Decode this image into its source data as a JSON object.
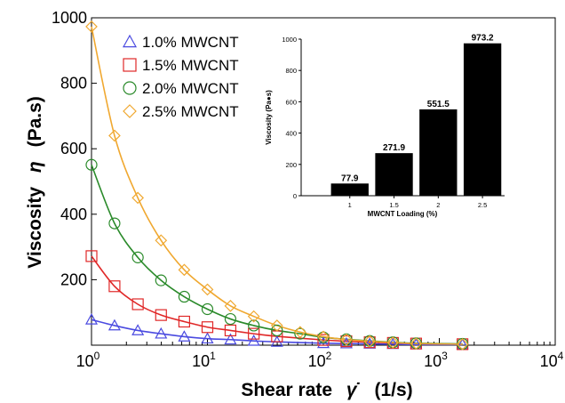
{
  "chart_data": [
    {
      "type": "scatter",
      "xlabel": "Shear rate",
      "xlabel_symbol": "γ̇",
      "xlabel_unit": "(1/s)",
      "ylabel": "Viscosity",
      "ylabel_symbol": "η",
      "ylabel_unit": "(Pa.s)",
      "xscale": "log",
      "xlim": [
        1,
        10000
      ],
      "ylim": [
        0,
        1000
      ],
      "xticks": [
        {
          "base": "10",
          "exp": "0"
        },
        {
          "base": "10",
          "exp": "1"
        },
        {
          "base": "10",
          "exp": "2"
        },
        {
          "base": "10",
          "exp": "3"
        },
        {
          "base": "10",
          "exp": "4"
        }
      ],
      "yticks": [
        "200",
        "400",
        "600",
        "800",
        "1000"
      ],
      "ytick_values": [
        200,
        400,
        600,
        800,
        1000
      ],
      "legend_position": "top-left",
      "series": [
        {
          "name": "1.0% MWCNT",
          "marker": "triangle",
          "color": "#4a4ae0",
          "x": [
            1,
            1.58,
            2.51,
            3.98,
            6.31,
            10,
            15.8,
            25.1,
            39.8,
            100,
            158,
            251,
            398,
            631,
            1585
          ],
          "y": [
            78,
            60,
            45,
            35,
            26,
            20,
            17,
            13,
            10,
            6,
            5,
            4,
            3,
            2,
            2
          ]
        },
        {
          "name": "1.5% MWCNT",
          "marker": "square",
          "color": "#e02828",
          "x": [
            1,
            1.58,
            2.51,
            3.98,
            6.31,
            10,
            15.8,
            25.1,
            39.8,
            100,
            158,
            251,
            398,
            631,
            1585
          ],
          "y": [
            272,
            180,
            125,
            92,
            72,
            55,
            45,
            35,
            27,
            16,
            12,
            9,
            7,
            5,
            3
          ]
        },
        {
          "name": "2.0% MWCNT",
          "marker": "circle",
          "color": "#2a8a2a",
          "x": [
            1,
            1.58,
            2.51,
            3.98,
            6.31,
            10,
            15.8,
            25.1,
            39.8,
            63.1,
            100,
            158,
            251,
            398,
            631,
            1585
          ],
          "y": [
            551,
            372,
            268,
            198,
            148,
            110,
            80,
            60,
            45,
            35,
            24,
            18,
            13,
            9,
            6,
            4
          ]
        },
        {
          "name": "2.5% MWCNT",
          "marker": "diamond",
          "color": "#f0a830",
          "x": [
            1,
            1.58,
            2.51,
            3.98,
            6.31,
            10,
            15.8,
            25.1,
            39.8,
            63.1,
            100,
            158,
            251,
            398,
            631,
            1585
          ],
          "y": [
            973,
            640,
            450,
            320,
            230,
            170,
            120,
            88,
            60,
            40,
            26,
            17,
            12,
            8,
            5,
            3
          ]
        }
      ]
    },
    {
      "type": "bar",
      "xlabel": "MWCNT Loading (%)",
      "ylabel": "Viscosity (Pa●s)",
      "categories": [
        "1",
        "1.5",
        "2",
        "2.5"
      ],
      "values": [
        77.9,
        271.9,
        551.5,
        973.2
      ],
      "value_labels": [
        "77.9",
        "271.9",
        "551.5",
        "973.2"
      ],
      "ylim": [
        0,
        1000
      ],
      "yticks": [
        "0",
        "200",
        "400",
        "600",
        "800",
        "1000"
      ],
      "ytick_values": [
        0,
        200,
        400,
        600,
        800,
        1000
      ],
      "bar_color": "#000000"
    }
  ]
}
